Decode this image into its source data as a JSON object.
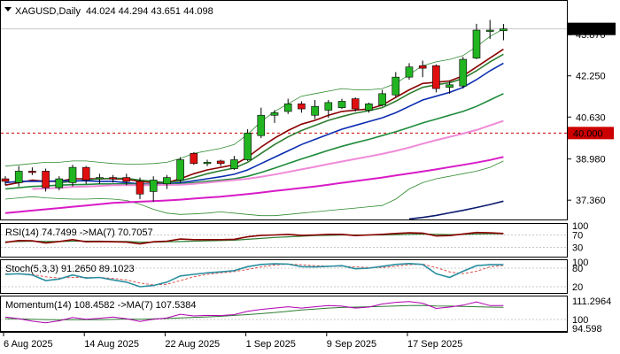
{
  "chart_data": {
    "type": "candlestick",
    "symbol": "XAGUSD",
    "timeframe": "Daily",
    "header": {
      "ohlc_text": "44.024 44.294 43.651 44.098"
    },
    "price_axis": {
      "ylim": [
        36.6,
        45.2
      ],
      "ticks": [
        {
          "value": 43.87,
          "label": "43.870"
        },
        {
          "value": 42.25,
          "label": "42.250"
        },
        {
          "value": 40.63,
          "label": "40.630"
        },
        {
          "value": 38.98,
          "label": "38.980"
        },
        {
          "value": 37.36,
          "label": "37.360"
        }
      ],
      "current_price": {
        "value": 44.098,
        "label": "44.098"
      },
      "level_line": {
        "value": 40.0,
        "label": "40.000",
        "color": "#cc0000"
      }
    },
    "candles": [
      {
        "o": 38.2,
        "h": 38.3,
        "l": 37.95,
        "c": 38.1
      },
      {
        "o": 38.05,
        "h": 38.7,
        "l": 37.9,
        "c": 38.5
      },
      {
        "o": 38.5,
        "h": 38.65,
        "l": 38.35,
        "c": 38.45
      },
      {
        "o": 38.5,
        "h": 38.6,
        "l": 37.7,
        "c": 37.85
      },
      {
        "o": 37.85,
        "h": 38.3,
        "l": 37.75,
        "c": 38.2
      },
      {
        "o": 38.05,
        "h": 38.75,
        "l": 37.9,
        "c": 38.65
      },
      {
        "o": 38.65,
        "h": 38.7,
        "l": 38.0,
        "c": 38.15
      },
      {
        "o": 38.2,
        "h": 38.4,
        "l": 38.0,
        "c": 38.25
      },
      {
        "o": 38.25,
        "h": 38.35,
        "l": 38.05,
        "c": 38.2
      },
      {
        "o": 38.25,
        "h": 38.4,
        "l": 37.95,
        "c": 38.1
      },
      {
        "o": 38.1,
        "h": 38.25,
        "l": 37.4,
        "c": 37.6
      },
      {
        "o": 37.7,
        "h": 38.3,
        "l": 37.3,
        "c": 38.15
      },
      {
        "o": 38.0,
        "h": 38.35,
        "l": 37.8,
        "c": 38.25
      },
      {
        "o": 38.15,
        "h": 39.05,
        "l": 38.05,
        "c": 38.95
      },
      {
        "o": 39.2,
        "h": 39.25,
        "l": 38.75,
        "c": 38.8
      },
      {
        "o": 38.8,
        "h": 38.95,
        "l": 38.7,
        "c": 38.85
      },
      {
        "o": 38.9,
        "h": 38.95,
        "l": 38.7,
        "c": 38.8
      },
      {
        "o": 38.6,
        "h": 39.1,
        "l": 38.55,
        "c": 38.95
      },
      {
        "o": 38.95,
        "h": 40.15,
        "l": 38.9,
        "c": 40.0
      },
      {
        "o": 39.9,
        "h": 41.0,
        "l": 39.8,
        "c": 40.7
      },
      {
        "o": 40.7,
        "h": 40.9,
        "l": 40.4,
        "c": 40.8
      },
      {
        "o": 40.85,
        "h": 41.35,
        "l": 40.75,
        "c": 41.15
      },
      {
        "o": 41.15,
        "h": 41.25,
        "l": 40.8,
        "c": 40.95
      },
      {
        "o": 40.7,
        "h": 41.3,
        "l": 40.55,
        "c": 41.05
      },
      {
        "o": 40.9,
        "h": 41.3,
        "l": 40.6,
        "c": 41.2
      },
      {
        "o": 41.0,
        "h": 41.35,
        "l": 40.95,
        "c": 41.25
      },
      {
        "o": 41.35,
        "h": 41.4,
        "l": 40.85,
        "c": 40.95
      },
      {
        "o": 40.9,
        "h": 41.2,
        "l": 40.8,
        "c": 41.15
      },
      {
        "o": 41.1,
        "h": 41.7,
        "l": 41.05,
        "c": 41.55
      },
      {
        "o": 41.5,
        "h": 42.4,
        "l": 41.4,
        "c": 42.2
      },
      {
        "o": 42.2,
        "h": 42.75,
        "l": 42.1,
        "c": 42.6
      },
      {
        "o": 42.65,
        "h": 42.85,
        "l": 42.2,
        "c": 42.55
      },
      {
        "o": 42.65,
        "h": 42.7,
        "l": 41.6,
        "c": 41.75
      },
      {
        "o": 41.8,
        "h": 42.05,
        "l": 41.55,
        "c": 41.9
      },
      {
        "o": 41.85,
        "h": 43.0,
        "l": 41.75,
        "c": 42.9
      },
      {
        "o": 42.95,
        "h": 44.3,
        "l": 42.9,
        "c": 44.05
      },
      {
        "o": 44.0,
        "h": 44.45,
        "l": 43.7,
        "c": 44.05
      },
      {
        "o": 44.024,
        "h": 44.294,
        "l": 43.651,
        "c": 44.098
      }
    ],
    "moving_averages": [
      {
        "color": "#8b0000",
        "values": [
          37.95,
          38.05,
          38.15,
          38.1,
          38.1,
          38.2,
          38.2,
          38.2,
          38.2,
          38.18,
          38.1,
          38.05,
          38.05,
          38.2,
          38.4,
          38.55,
          38.65,
          38.75,
          39.05,
          39.45,
          39.8,
          40.1,
          40.35,
          40.5,
          40.7,
          40.85,
          40.9,
          40.95,
          41.1,
          41.4,
          41.7,
          41.95,
          42.0,
          42.05,
          42.25,
          42.6,
          42.95,
          43.3
        ]
      },
      {
        "color": "#2e7d32",
        "values": [
          null,
          null,
          null,
          null,
          38.05,
          38.1,
          38.15,
          38.2,
          38.22,
          38.22,
          38.15,
          38.1,
          38.05,
          38.12,
          38.25,
          38.4,
          38.52,
          38.62,
          38.85,
          39.2,
          39.55,
          39.85,
          40.1,
          40.3,
          40.5,
          40.65,
          40.78,
          40.88,
          41.0,
          41.25,
          41.55,
          41.8,
          41.9,
          41.98,
          42.15,
          42.45,
          42.8,
          43.1
        ]
      },
      {
        "color": "#0b2db0",
        "values": [
          38.05,
          38.1,
          38.1,
          38.1,
          38.12,
          38.12,
          38.12,
          38.1,
          38.1,
          38.05,
          38.0,
          37.98,
          38.0,
          38.05,
          38.12,
          38.2,
          38.28,
          38.38,
          38.55,
          38.8,
          39.05,
          39.3,
          39.55,
          39.75,
          39.95,
          40.15,
          40.3,
          40.45,
          40.6,
          40.8,
          41.05,
          41.3,
          41.45,
          41.6,
          41.8,
          42.1,
          42.45,
          42.75
        ]
      },
      {
        "color": "#1e8b3a",
        "values": [
          37.8,
          37.85,
          37.9,
          37.92,
          37.95,
          37.97,
          37.98,
          38.0,
          38.0,
          38.0,
          37.98,
          37.96,
          37.98,
          38.0,
          38.05,
          38.1,
          38.15,
          38.2,
          38.3,
          38.45,
          38.62,
          38.8,
          38.98,
          39.15,
          39.32,
          39.48,
          39.62,
          39.75,
          39.9,
          40.05,
          40.22,
          40.4,
          40.55,
          40.7,
          40.85,
          41.05,
          41.3,
          41.55
        ]
      },
      {
        "color": "#f08ad8",
        "values": [
          null,
          null,
          37.8,
          37.82,
          37.85,
          37.88,
          37.9,
          37.92,
          37.95,
          37.95,
          37.95,
          37.95,
          37.96,
          37.97,
          38.0,
          38.05,
          38.1,
          38.15,
          38.2,
          38.28,
          38.37,
          38.47,
          38.57,
          38.67,
          38.78,
          38.88,
          38.98,
          39.08,
          39.18,
          39.3,
          39.43,
          39.58,
          39.72,
          39.85,
          39.98,
          40.12,
          40.3,
          40.48
        ]
      },
      {
        "color": "#d81bc6",
        "values": [
          36.85,
          36.9,
          36.95,
          37.0,
          37.05,
          37.1,
          37.15,
          37.2,
          37.25,
          37.28,
          37.3,
          37.32,
          37.35,
          37.38,
          37.42,
          37.46,
          37.5,
          37.55,
          37.6,
          37.66,
          37.72,
          37.78,
          37.84,
          37.9,
          37.97,
          38.04,
          38.11,
          38.18,
          38.25,
          38.33,
          38.41,
          38.49,
          38.57,
          38.66,
          38.75,
          38.84,
          38.94,
          39.06
        ]
      },
      {
        "color": "#0a1a6e",
        "values": [
          null,
          null,
          null,
          null,
          null,
          null,
          null,
          null,
          null,
          null,
          null,
          null,
          null,
          null,
          null,
          null,
          null,
          null,
          null,
          null,
          null,
          null,
          null,
          null,
          null,
          null,
          null,
          null,
          null,
          null,
          36.62,
          36.68,
          36.76,
          36.86,
          36.96,
          37.07,
          37.19,
          37.32
        ]
      }
    ],
    "bollinger": {
      "color": "#2e8b2e",
      "upper": [
        38.7,
        38.75,
        38.8,
        38.85,
        38.85,
        38.9,
        38.9,
        38.85,
        38.8,
        38.78,
        38.78,
        38.8,
        38.85,
        39.0,
        39.2,
        39.3,
        39.4,
        39.55,
        39.95,
        40.45,
        40.85,
        41.15,
        41.45,
        41.55,
        41.65,
        41.75,
        41.7,
        41.7,
        41.75,
        41.95,
        42.3,
        42.65,
        42.8,
        42.9,
        43.05,
        43.4,
        43.8,
        44.1
      ],
      "lower": [
        37.4,
        37.45,
        37.5,
        37.45,
        37.42,
        37.4,
        37.4,
        37.42,
        37.4,
        37.35,
        37.2,
        37.0,
        36.85,
        36.8,
        36.82,
        36.85,
        36.9,
        36.85,
        36.8,
        36.75,
        36.75,
        36.8,
        36.85,
        36.9,
        36.95,
        37.0,
        37.05,
        37.1,
        37.15,
        37.4,
        37.8,
        38.05,
        38.2,
        38.3,
        38.4,
        38.5,
        38.65,
        38.9
      ]
    },
    "x_axis": {
      "labels": [
        {
          "index": 0,
          "label": "6 Aug 2025"
        },
        {
          "index": 6,
          "label": "14 Aug 2025"
        },
        {
          "index": 12,
          "label": "22 Aug 2025"
        },
        {
          "index": 18,
          "label": "1 Sep 2025"
        },
        {
          "index": 24,
          "label": "9 Sep 2025"
        },
        {
          "index": 30,
          "label": "17 Sep 2025"
        }
      ]
    },
    "rsi": {
      "title": "RSI(14) 74.7499 ->MA(7) 70.7057",
      "ylim": [
        0,
        100
      ],
      "ticks": [
        {
          "value": 100,
          "label": "100"
        },
        {
          "value": 70,
          "label": "70"
        },
        {
          "value": 30,
          "label": "30"
        }
      ],
      "line_color": "#8b0000",
      "ma_color": "#2e7d32",
      "values": [
        46,
        52,
        51,
        44,
        49,
        55,
        48,
        49,
        48,
        47,
        41,
        48,
        50,
        57,
        55,
        55,
        55,
        56,
        64,
        69,
        70,
        72,
        69,
        70,
        72,
        72,
        68,
        70,
        72,
        75,
        77,
        76,
        67,
        68,
        73,
        78,
        77,
        75
      ],
      "ma_values": [
        48,
        49,
        50,
        49,
        49,
        50,
        50,
        50,
        49,
        49,
        47,
        47,
        48,
        49,
        50,
        51,
        52,
        53,
        56,
        59,
        62,
        64,
        66,
        68,
        69,
        70,
        70,
        70,
        70,
        71,
        72,
        73,
        72,
        71,
        72,
        73,
        74,
        74
      ]
    },
    "stochastic": {
      "title": "Stoch(5,3,3) 91.2650 89.1023",
      "ylim": [
        0,
        100
      ],
      "ticks": [
        {
          "value": 100,
          "label": "100"
        },
        {
          "value": 80,
          "label": "80"
        },
        {
          "value": 20,
          "label": "20"
        }
      ],
      "k_color": "#2a8fa0",
      "d_color": "#e05050",
      "k": [
        60,
        62,
        58,
        40,
        45,
        58,
        48,
        50,
        42,
        35,
        20,
        24,
        35,
        55,
        60,
        65,
        68,
        72,
        85,
        92,
        94,
        93,
        85,
        84,
        86,
        88,
        78,
        80,
        86,
        92,
        95,
        92,
        62,
        50,
        70,
        88,
        91,
        91
      ],
      "d": [
        62,
        61,
        60,
        52,
        48,
        50,
        50,
        50,
        47,
        42,
        32,
        26,
        28,
        40,
        52,
        60,
        65,
        69,
        76,
        84,
        90,
        93,
        91,
        88,
        86,
        86,
        84,
        82,
        82,
        86,
        91,
        93,
        82,
        68,
        62,
        70,
        84,
        89
      ]
    },
    "momentum": {
      "title": "Momentum(14) 108.4582 ->MA(7) 107.5384",
      "ylim": [
        93,
        113
      ],
      "ticks": [
        {
          "value": 111.2964,
          "label": "111.2964"
        },
        {
          "value": 100,
          "label": "100"
        },
        {
          "value": 94.598,
          "label": "94.598"
        }
      ],
      "level_line": 100,
      "line_color": "#b000b0",
      "ma_color": "#2e7d32",
      "values": [
        101.5,
        100.5,
        99.0,
        98.0,
        99.2,
        101.2,
        100.2,
        100.8,
        101.5,
        100.5,
        98.8,
        100.2,
        101.0,
        103.2,
        102.2,
        102.5,
        102.4,
        103.0,
        105.0,
        106.2,
        107.0,
        107.8,
        107.0,
        107.8,
        108.5,
        108.2,
        107.0,
        107.6,
        109.5,
        110.5,
        111.0,
        110.0,
        106.8,
        107.6,
        108.8,
        110.8,
        108.5,
        108.5
      ],
      "ma_values": [
        100.5,
        100.4,
        100.2,
        100.0,
        99.8,
        99.9,
        99.9,
        99.9,
        100.1,
        100.3,
        100.2,
        100.4,
        100.6,
        101.0,
        101.3,
        101.6,
        102.0,
        102.5,
        103.0,
        103.6,
        104.3,
        105.0,
        105.8,
        106.4,
        107.0,
        107.4,
        107.6,
        107.8,
        108.0,
        108.3,
        108.5,
        108.6,
        108.3,
        108.2,
        108.0,
        107.8,
        107.6,
        107.5
      ]
    },
    "colors": {
      "bull": "#22b522",
      "bear": "#e01010",
      "outline": "#000000",
      "grid": "#c8c8c8",
      "price_box": "#000000"
    },
    "icons": {
      "collapse": "triangle-down-icon"
    }
  }
}
